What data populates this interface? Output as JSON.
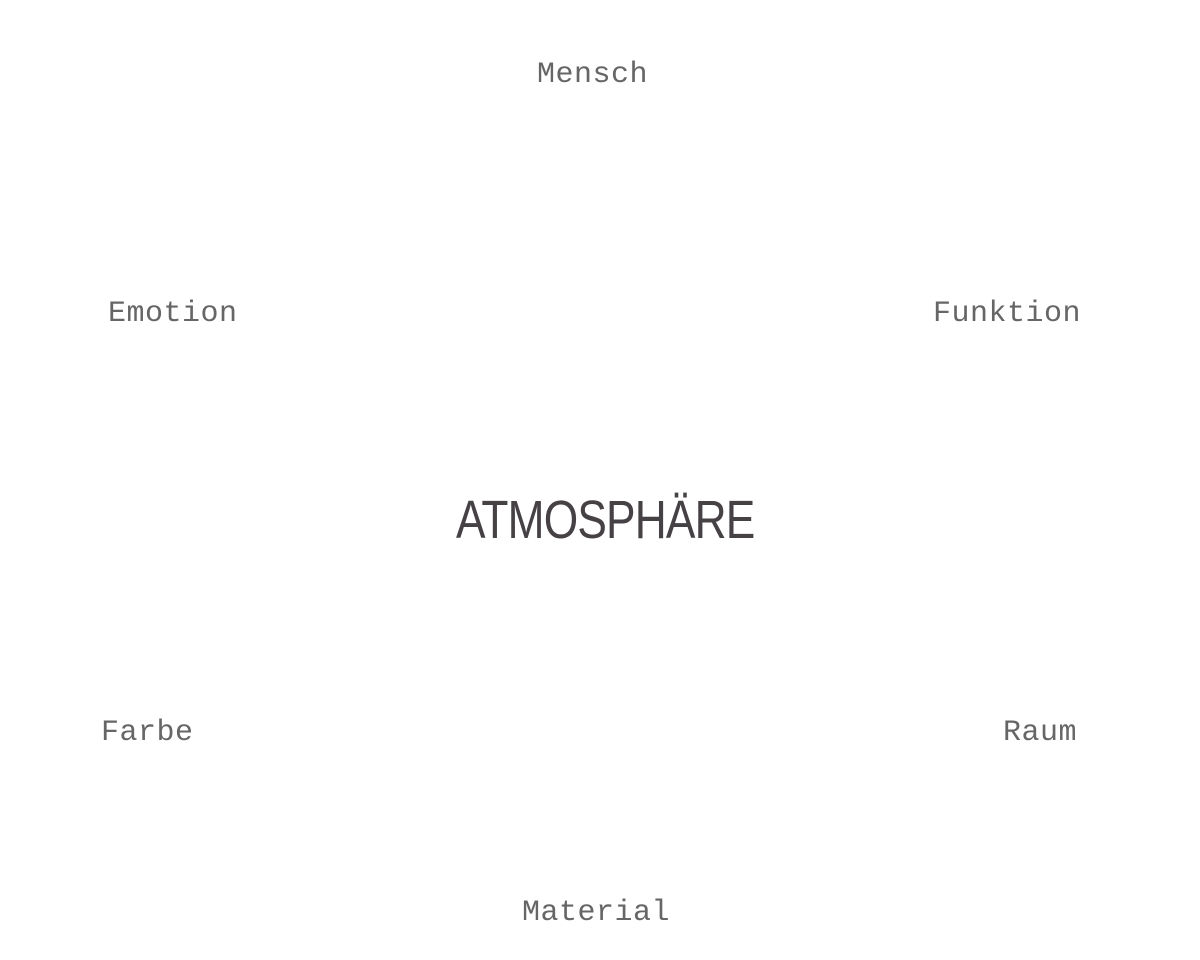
{
  "diagram": {
    "center": "ATMOSPHÄRE",
    "terms": {
      "top": "Mensch",
      "upper_left": "Emotion",
      "upper_right": "Funktion",
      "lower_left": "Farbe",
      "lower_right": "Raum",
      "bottom": "Material"
    },
    "colors": {
      "center_text": "#454145",
      "term_text": "#666666",
      "background": "#ffffff"
    }
  }
}
